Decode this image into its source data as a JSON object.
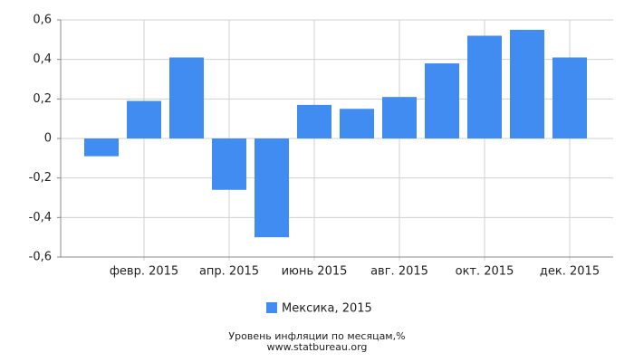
{
  "chart_data": {
    "type": "bar",
    "categories": [
      null,
      "февр. 2015",
      null,
      "апр. 2015",
      null,
      "июнь 2015",
      null,
      "авг. 2015",
      null,
      "окт. 2015",
      null,
      "дек. 2015"
    ],
    "series": [
      {
        "name": "Мексика, 2015",
        "color": "#418cf0",
        "values": [
          -0.09,
          0.19,
          0.41,
          -0.26,
          -0.5,
          0.17,
          0.15,
          0.21,
          0.38,
          0.52,
          0.55,
          0.41
        ]
      }
    ],
    "ylim": [
      -0.6,
      0.6
    ],
    "yticks": [
      {
        "value": -0.6,
        "label": "-0,6"
      },
      {
        "value": -0.4,
        "label": "-0,4"
      },
      {
        "value": -0.2,
        "label": "-0,2"
      },
      0,
      {
        "value": 0.2,
        "label": "0,2"
      },
      {
        "value": 0.4,
        "label": "0,4"
      },
      {
        "value": 0.6,
        "label": "0,6"
      }
    ],
    "grid": true,
    "legend": "bottom",
    "caption": "Уровень инфляции по месяцам,%",
    "source": "www.statbureau.org"
  }
}
